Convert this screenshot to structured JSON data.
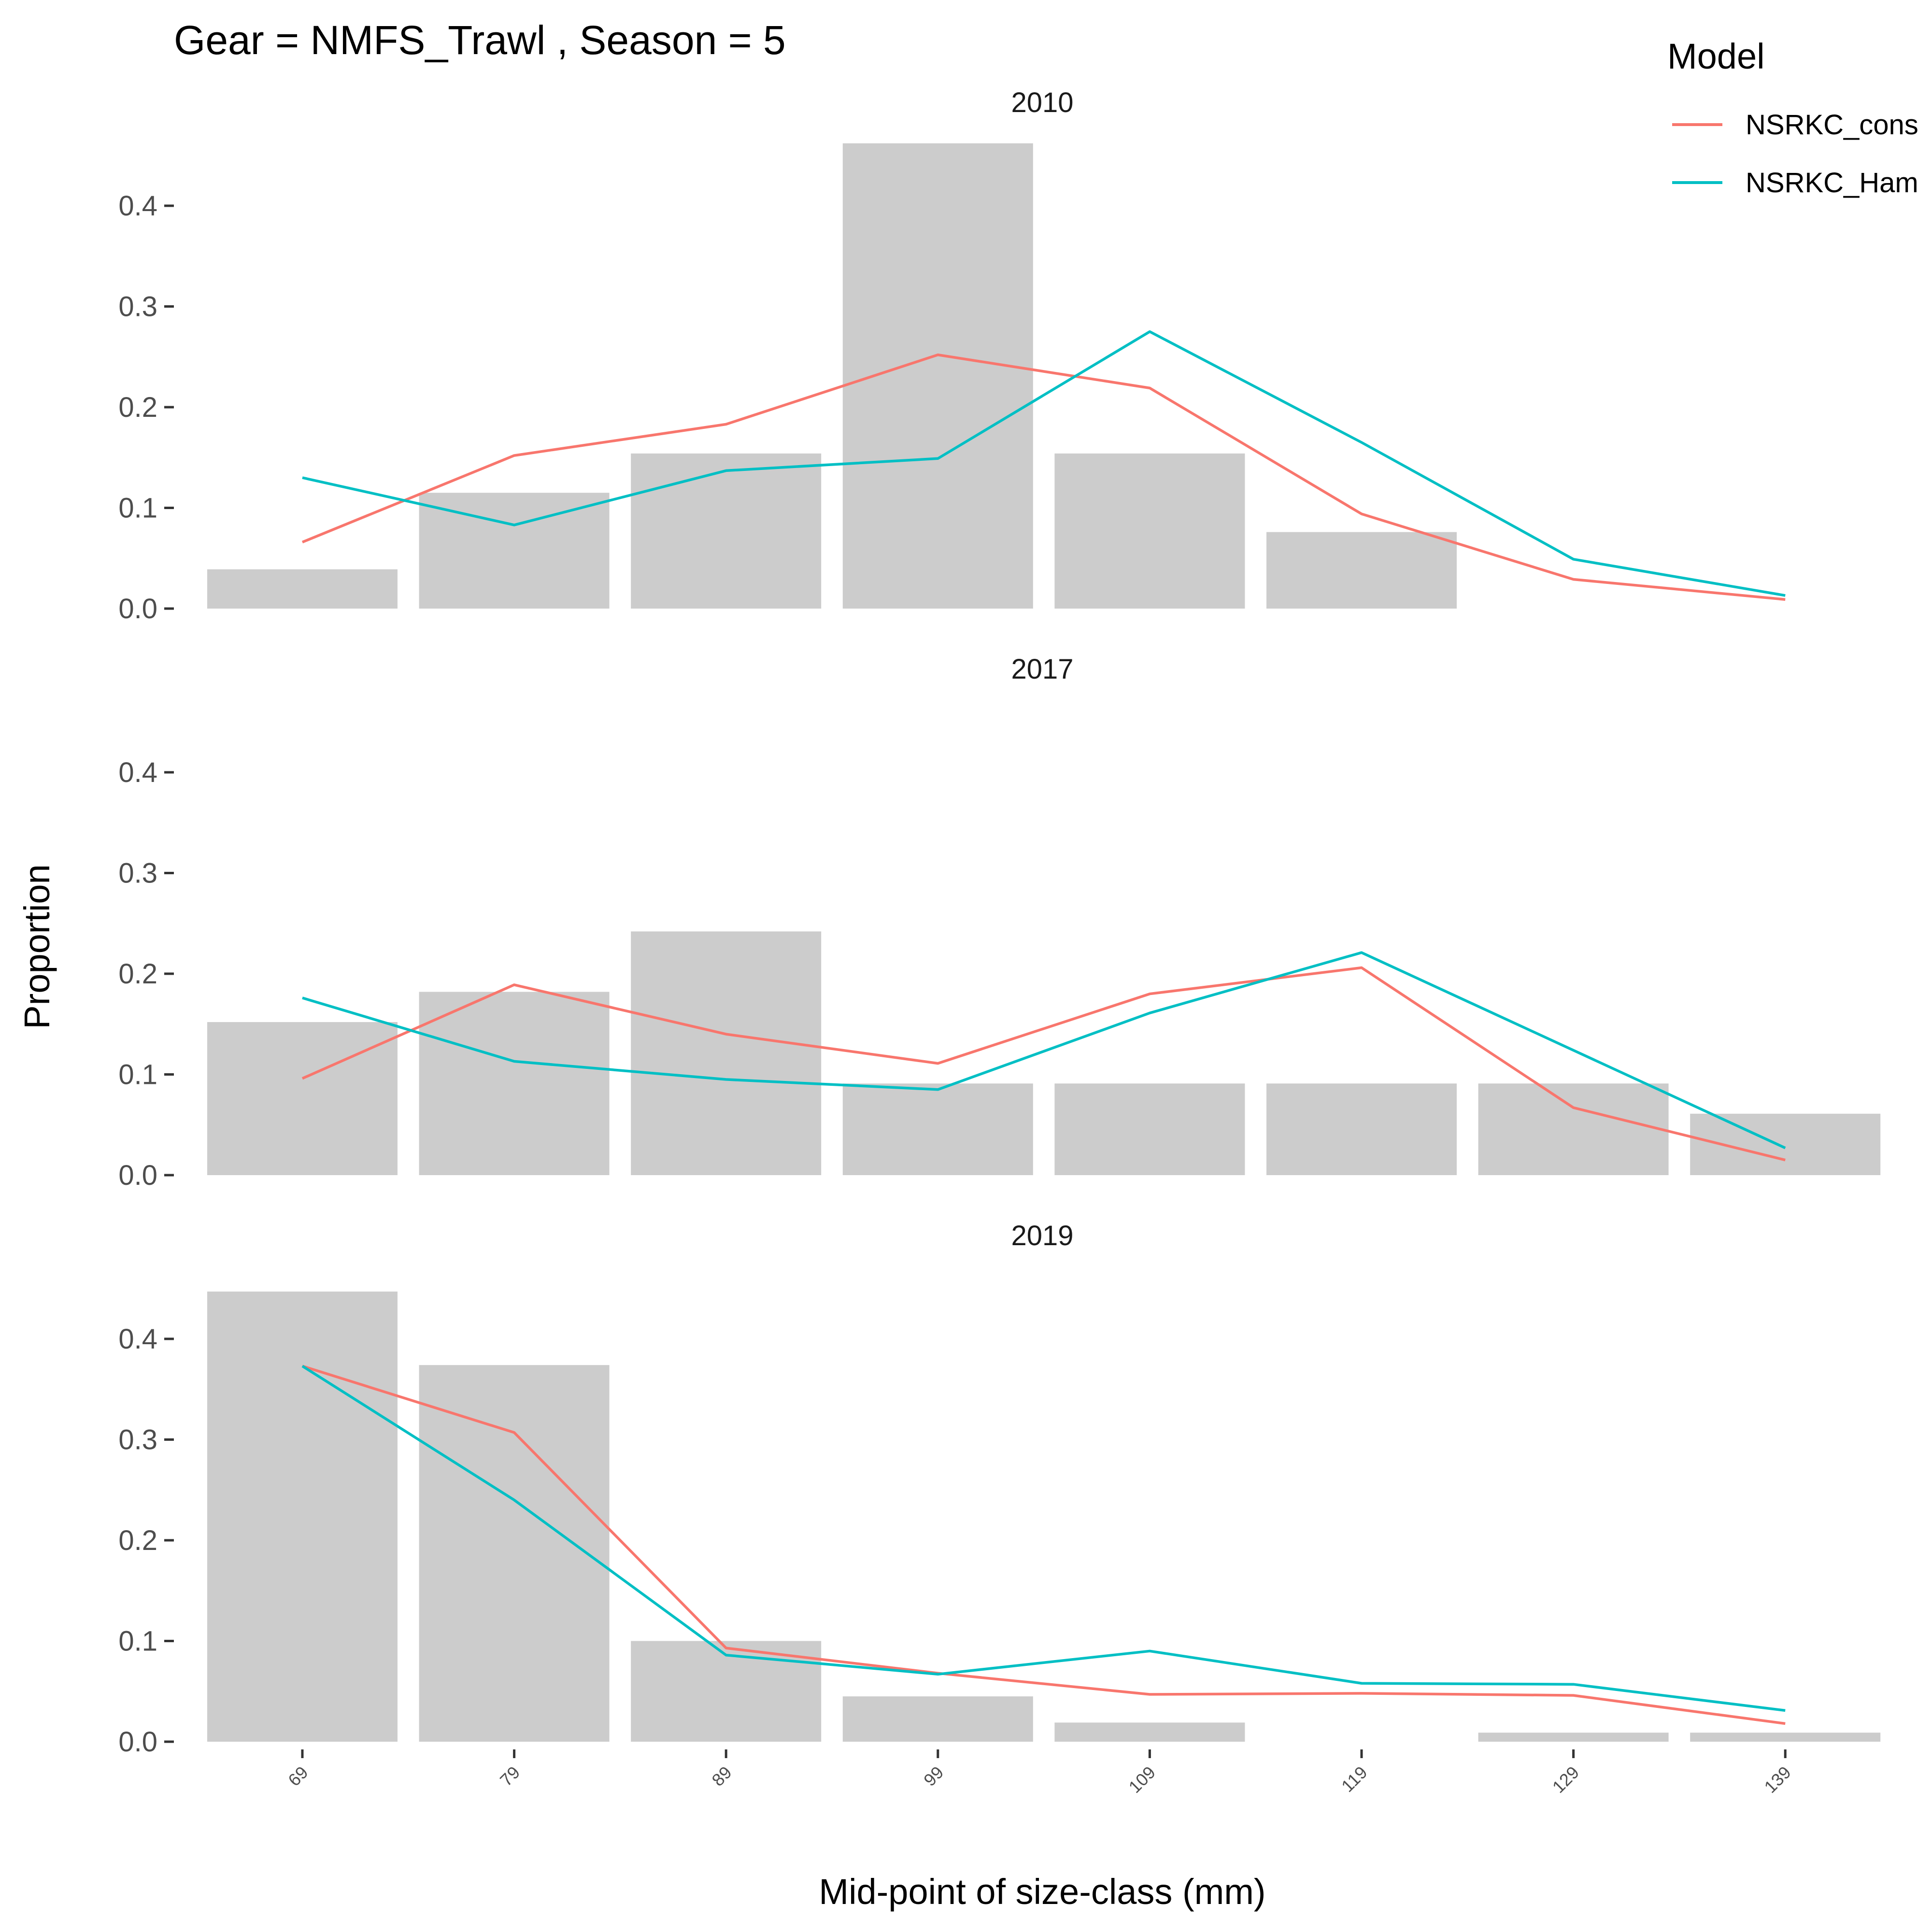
{
  "chart_data": {
    "type": "bar",
    "title": "Gear = NMFS_Trawl , Season = 5",
    "xlabel": "Mid-point of size-class (mm)",
    "ylabel": "Proportion",
    "categories": [
      "69",
      "79",
      "89",
      "99",
      "109",
      "119",
      "129",
      "139"
    ],
    "yticks": [
      "0.0",
      "0.1",
      "0.2",
      "0.3",
      "0.4"
    ],
    "ylim": [
      0,
      0.46
    ],
    "legend": {
      "title": "Model",
      "position": "top-right",
      "entries": [
        {
          "name": "NSRKC_cons",
          "color": "#F8766D"
        },
        {
          "name": "NSRKC_Ham",
          "color": "#00BFC4"
        }
      ]
    },
    "bar_color": "#cccccc",
    "panels": [
      {
        "label": "2010",
        "observed": [
          0.039,
          0.115,
          0.154,
          0.462,
          0.154,
          0.076,
          null,
          null
        ],
        "series": [
          {
            "name": "NSRKC_cons",
            "values": [
              0.066,
              0.152,
              0.183,
              0.252,
              0.219,
              0.094,
              0.029,
              0.009
            ]
          },
          {
            "name": "NSRKC_Ham",
            "values": [
              0.13,
              0.083,
              0.137,
              0.149,
              0.275,
              0.165,
              0.049,
              0.013
            ]
          }
        ]
      },
      {
        "label": "2017",
        "observed": [
          0.152,
          0.182,
          0.242,
          0.091,
          0.091,
          0.091,
          0.091,
          0.061
        ],
        "series": [
          {
            "name": "NSRKC_cons",
            "values": [
              0.096,
              0.189,
              0.14,
              0.111,
              0.18,
              0.206,
              0.067,
              0.015
            ]
          },
          {
            "name": "NSRKC_Ham",
            "values": [
              0.176,
              0.113,
              0.095,
              0.085,
              0.161,
              0.221,
              0.124,
              0.027
            ]
          }
        ]
      },
      {
        "label": "2019",
        "observed": [
          0.447,
          0.374,
          0.1,
          0.045,
          0.019,
          null,
          0.009,
          0.009
        ],
        "series": [
          {
            "name": "NSRKC_cons",
            "values": [
              0.373,
              0.307,
              0.093,
              0.068,
              0.047,
              0.048,
              0.046,
              0.018
            ]
          },
          {
            "name": "NSRKC_Ham",
            "values": [
              0.373,
              0.24,
              0.086,
              0.067,
              0.09,
              0.058,
              0.057,
              0.031
            ]
          }
        ]
      }
    ]
  }
}
